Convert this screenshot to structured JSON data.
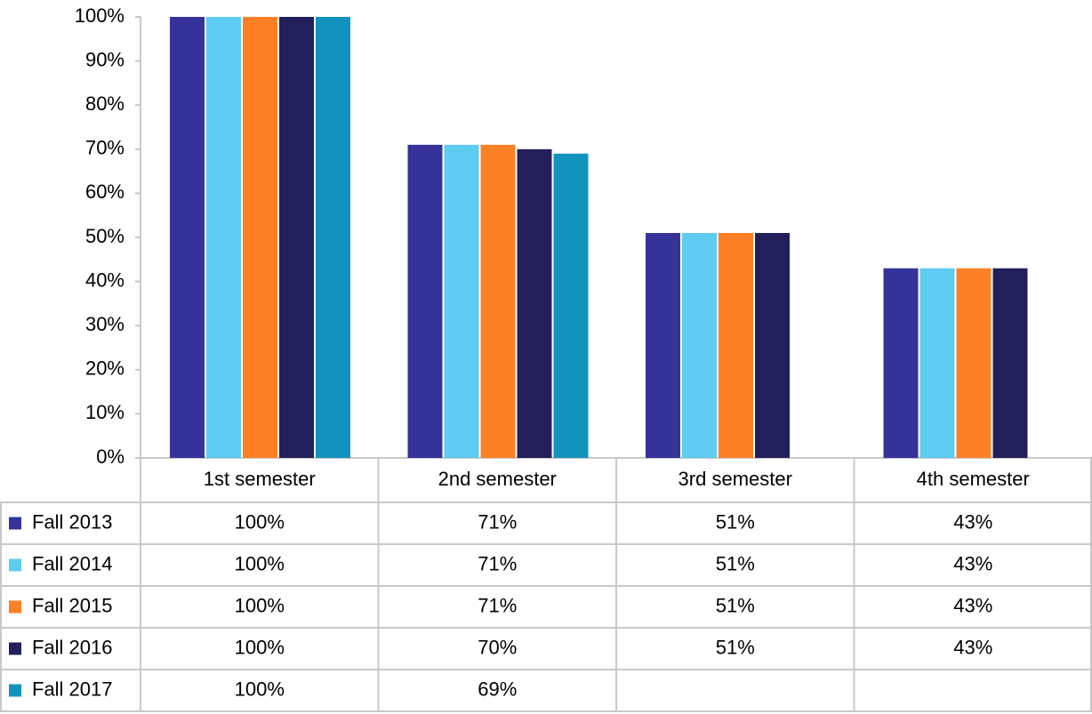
{
  "chart_data": {
    "type": "bar",
    "categories": [
      "1st semester",
      "2nd semester",
      "3rd semester",
      "4th semester"
    ],
    "series": [
      {
        "name": "Fall 2013",
        "color": "#35339a",
        "values": [
          100,
          71,
          51,
          43
        ],
        "value_labels": [
          "100%",
          "71%",
          "51%",
          "43%"
        ]
      },
      {
        "name": "Fall 2014",
        "color": "#5ecbf1",
        "values": [
          100,
          71,
          51,
          43
        ],
        "value_labels": [
          "100%",
          "71%",
          "51%",
          "43%"
        ]
      },
      {
        "name": "Fall 2015",
        "color": "#fd8024",
        "values": [
          100,
          71,
          51,
          43
        ],
        "value_labels": [
          "100%",
          "71%",
          "51%",
          "43%"
        ]
      },
      {
        "name": "Fall 2016",
        "color": "#221f5a",
        "values": [
          100,
          70,
          51,
          43
        ],
        "value_labels": [
          "100%",
          "70%",
          "51%",
          "43%"
        ]
      },
      {
        "name": "Fall 2017",
        "color": "#1293be",
        "values": [
          100,
          69,
          null,
          null
        ],
        "value_labels": [
          "100%",
          "69%",
          null,
          null
        ]
      }
    ],
    "ylim": [
      0,
      100
    ],
    "yticks": [
      {
        "value": 0,
        "label": "0%"
      },
      {
        "value": 10,
        "label": "10%"
      },
      {
        "value": 20,
        "label": "20%"
      },
      {
        "value": 30,
        "label": "30%"
      },
      {
        "value": 40,
        "label": "40%"
      },
      {
        "value": 50,
        "label": "50%"
      },
      {
        "value": 60,
        "label": "60%"
      },
      {
        "value": 70,
        "label": "70%"
      },
      {
        "value": 80,
        "label": "80%"
      },
      {
        "value": 90,
        "label": "90%"
      },
      {
        "value": 100,
        "label": "100%"
      }
    ],
    "grid": false
  }
}
